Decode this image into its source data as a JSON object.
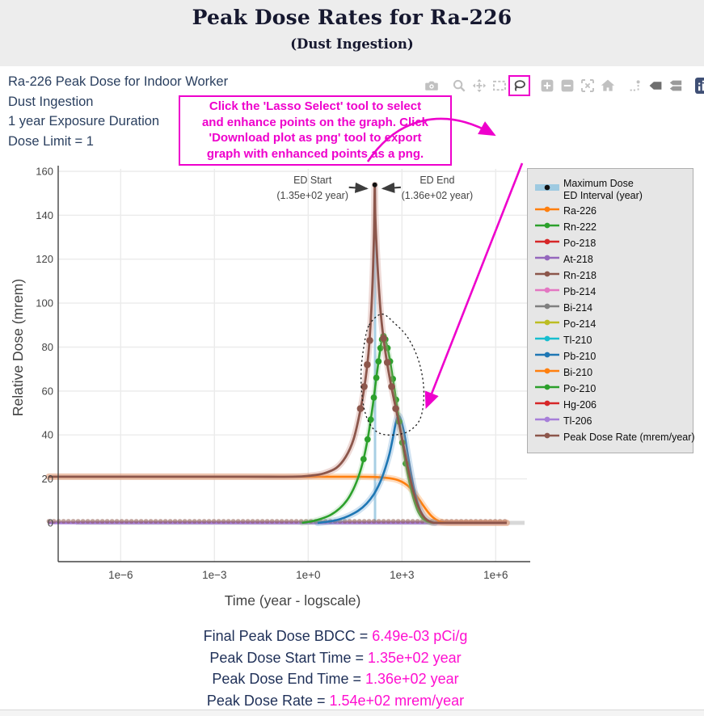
{
  "page": {
    "title": "Peak Dose Rates for Ra-226",
    "subtitle": "(Dust Ingestion)"
  },
  "info": {
    "lines": [
      "Ra-226 Peak Dose for Indoor Worker",
      "Dust Ingestion",
      "1 year Exposure Duration",
      "Dose Limit = 1"
    ]
  },
  "callout": {
    "lines": [
      "Click the 'Lasso Select' tool to select",
      "and enhance points on the graph. Click",
      "'Download plot as png' tool to export",
      "graph with enhanced points as a png."
    ]
  },
  "toolbar": {
    "groups": [
      [
        "camera"
      ],
      [
        "zoom",
        "pan",
        "box-select",
        "lasso"
      ],
      [
        "zoom-in",
        "zoom-out",
        "autoscale",
        "home"
      ],
      [
        "spikelines",
        "hover-closest",
        "hover-compare"
      ],
      [
        "plotly-logo"
      ]
    ],
    "highlighted": "lasso",
    "colors": {
      "default": "#c1c1c1",
      "lasso": "#4d4d4d",
      "hover-closest": "#6f6f6f",
      "hover-compare": "#9a9a9a",
      "logo_bg": "#3f4f75"
    }
  },
  "legend": {
    "items": [
      {
        "label": "Maximum Dose",
        "label2": "ED Interval (year)",
        "color": "#9ecae1",
        "type": "band",
        "dot": "#111111"
      },
      {
        "label": "Ra-226",
        "color": "#ff7f0e",
        "type": "line"
      },
      {
        "label": "Rn-222",
        "color": "#2ca02c",
        "type": "line"
      },
      {
        "label": "Po-218",
        "color": "#d62728",
        "type": "line"
      },
      {
        "label": "At-218",
        "color": "#9467bd",
        "type": "line"
      },
      {
        "label": "Rn-218",
        "color": "#8c564b",
        "type": "line"
      },
      {
        "label": "Pb-214",
        "color": "#e377c2",
        "type": "line"
      },
      {
        "label": "Bi-214",
        "color": "#7f7f7f",
        "type": "line"
      },
      {
        "label": "Po-214",
        "color": "#bcbd22",
        "type": "line"
      },
      {
        "label": "Tl-210",
        "color": "#17becf",
        "type": "line"
      },
      {
        "label": "Pb-210",
        "color": "#1f77b4",
        "type": "line"
      },
      {
        "label": "Bi-210",
        "color": "#ff7f0e",
        "type": "line"
      },
      {
        "label": "Po-210",
        "color": "#2ca02c",
        "type": "line"
      },
      {
        "label": "Hg-206",
        "color": "#d62728",
        "type": "line"
      },
      {
        "label": "Tl-206",
        "color": "#a77fd9",
        "type": "line"
      },
      {
        "label": "Peak Dose Rate (mrem/year)",
        "color": "#8c564b",
        "type": "line"
      }
    ]
  },
  "summary": {
    "lines": [
      {
        "label": "Final Peak Dose BDCC = ",
        "value": "6.49e-03 pCi/g"
      },
      {
        "label": "Peak Dose Start Time = ",
        "value": "1.35e+02 year"
      },
      {
        "label": "Peak Dose End Time = ",
        "value": "1.36e+02 year"
      },
      {
        "label": "Peak Dose Rate = ",
        "value": "1.54e+02 mrem/year"
      }
    ]
  },
  "chart_data": {
    "type": "line",
    "xlabel": "Time (year - logscale)",
    "ylabel": "Relative Dose (mrem)",
    "x_scale": "log10",
    "x_range_log": [
      -8,
      7
    ],
    "x_ticks": [
      {
        "log": -6,
        "label": "1e−6"
      },
      {
        "log": -3,
        "label": "1e−3"
      },
      {
        "log": 0,
        "label": "1e+0"
      },
      {
        "log": 3,
        "label": "1e+3"
      },
      {
        "log": 6,
        "label": "1e+6"
      }
    ],
    "y_range": [
      -17,
      165
    ],
    "y_ticks": [
      0,
      20,
      40,
      60,
      80,
      100,
      120,
      140,
      160
    ],
    "grid": true,
    "legend_position": "right",
    "max_dose_point": {
      "log_time": 2.13,
      "value": 153.8
    },
    "ed_interval": {
      "start_log": 2.1303,
      "end_log": 2.1335,
      "color": "#9ecae1"
    },
    "annotations": [
      {
        "lines": [
          "ED Start",
          "(1.35e+02 year)"
        ],
        "side": "left",
        "target_log": 2.13,
        "target_value": 153.8
      },
      {
        "lines": [
          "ED End",
          "(1.36e+02 year)"
        ],
        "side": "right",
        "target_log": 2.135,
        "target_value": 153.8
      }
    ],
    "lasso_region": [
      [
        1.95,
        90
      ],
      [
        2.35,
        95
      ],
      [
        2.75,
        91
      ],
      [
        3.2,
        84
      ],
      [
        3.55,
        73
      ],
      [
        3.7,
        60
      ],
      [
        3.6,
        48
      ],
      [
        3.25,
        42
      ],
      [
        2.75,
        40
      ],
      [
        2.25,
        41
      ],
      [
        1.93,
        46
      ],
      [
        1.75,
        55
      ],
      [
        1.69,
        68
      ],
      [
        1.79,
        81
      ]
    ],
    "series": [
      {
        "name": "Rn-222",
        "color": "#2ca02c",
        "width": 2,
        "points": [
          [
            -8.3,
            0
          ],
          [
            6.35,
            0
          ]
        ]
      },
      {
        "name": "Po-218",
        "color": "#d62728",
        "width": 2,
        "points": [
          [
            -8.3,
            0
          ],
          [
            6.35,
            0
          ]
        ]
      },
      {
        "name": "At-218",
        "color": "#9467bd",
        "width": 2,
        "points": [
          [
            -8.3,
            0
          ],
          [
            6.35,
            0
          ]
        ]
      },
      {
        "name": "Rn-218",
        "color": "#8c564b",
        "width": 2,
        "points": [
          [
            -8.3,
            0
          ],
          [
            6.35,
            0
          ]
        ]
      },
      {
        "name": "Pb-214",
        "color": "#e377c2",
        "width": 2,
        "points": [
          [
            -8.3,
            0
          ],
          [
            6.35,
            0
          ]
        ]
      },
      {
        "name": "Bi-214",
        "color": "#7f7f7f",
        "width": 2,
        "points": [
          [
            -8.3,
            0
          ],
          [
            6.35,
            0
          ]
        ]
      },
      {
        "name": "Po-214",
        "color": "#bcbd22",
        "width": 2,
        "points": [
          [
            -8.3,
            0
          ],
          [
            6.35,
            0
          ]
        ]
      },
      {
        "name": "Tl-210",
        "color": "#17becf",
        "width": 2,
        "points": [
          [
            -8.3,
            0
          ],
          [
            6.35,
            0
          ]
        ]
      },
      {
        "name": "Bi-210",
        "color": "#ff7f0e",
        "width": 2,
        "points": [
          [
            -8.3,
            0
          ],
          [
            6.35,
            0
          ]
        ]
      },
      {
        "name": "Hg-206",
        "color": "#d62728",
        "width": 2,
        "points": [
          [
            -8.3,
            0
          ],
          [
            6.35,
            0
          ]
        ]
      },
      {
        "name": "Tl-206",
        "color": "#a77fd9",
        "width": 3.4,
        "points": [
          [
            -8.3,
            0
          ],
          [
            6.35,
            0
          ]
        ],
        "speckle": "#8c564b"
      },
      {
        "name": "Ra-226",
        "color": "#ff7f0e",
        "width": 2.6,
        "halo": "rgba(255,150,60,0.32)",
        "halo_w": 8,
        "points": [
          [
            -8.3,
            21
          ],
          [
            -4,
            21
          ],
          [
            -1,
            21
          ],
          [
            0.5,
            21
          ],
          [
            1.5,
            21
          ],
          [
            2.1,
            20.9
          ],
          [
            2.5,
            20.5
          ],
          [
            2.8,
            19.8
          ],
          [
            3.0,
            18.7
          ],
          [
            3.17,
            17.1
          ],
          [
            3.32,
            15.0
          ],
          [
            3.45,
            12.6
          ],
          [
            3.57,
            10.2
          ],
          [
            3.68,
            7.9
          ],
          [
            3.79,
            5.7
          ],
          [
            3.9,
            3.8
          ],
          [
            4.0,
            2.4
          ],
          [
            4.12,
            1.2
          ],
          [
            4.25,
            0.4
          ],
          [
            4.4,
            0.1
          ],
          [
            4.6,
            0
          ],
          [
            5.5,
            0
          ],
          [
            6.35,
            0
          ]
        ]
      },
      {
        "name": "Pb-210",
        "color": "#1f77b4",
        "width": 2.6,
        "halo": "rgba(100,160,210,0.30)",
        "halo_w": 8,
        "points": [
          [
            0.3,
            0
          ],
          [
            0.65,
            0.6
          ],
          [
            1.0,
            1.6
          ],
          [
            1.3,
            3.2
          ],
          [
            1.6,
            5.5
          ],
          [
            1.87,
            8.8
          ],
          [
            2.1,
            13
          ],
          [
            2.3,
            18.5
          ],
          [
            2.47,
            25
          ],
          [
            2.6,
            31.5
          ],
          [
            2.7,
            38
          ],
          [
            2.78,
            44
          ],
          [
            2.84,
            47.5
          ],
          [
            2.89,
            48.8
          ],
          [
            2.95,
            47.5
          ],
          [
            3.02,
            44
          ],
          [
            3.1,
            38.5
          ],
          [
            3.18,
            31.5
          ],
          [
            3.27,
            24
          ],
          [
            3.37,
            16.5
          ],
          [
            3.48,
            10
          ],
          [
            3.6,
            5.2
          ],
          [
            3.73,
            2.2
          ],
          [
            3.87,
            0.7
          ],
          [
            4.05,
            0
          ]
        ]
      },
      {
        "name": "Po-210",
        "color": "#2ca02c",
        "width": 2.6,
        "halo": "rgba(120,190,120,0.22)",
        "halo_w": 7,
        "dots": {
          "min": 27,
          "r": 3.9
        },
        "points": [
          [
            -0.2,
            0
          ],
          [
            0.1,
            0.7
          ],
          [
            0.4,
            1.8
          ],
          [
            0.7,
            3.5
          ],
          [
            1.0,
            6.5
          ],
          [
            1.25,
            10.5
          ],
          [
            1.45,
            15.5
          ],
          [
            1.62,
            21.5
          ],
          [
            1.77,
            29
          ],
          [
            1.9,
            38
          ],
          [
            2.0,
            47
          ],
          [
            2.1,
            57
          ],
          [
            2.18,
            66
          ],
          [
            2.25,
            73.5
          ],
          [
            2.31,
            79.5
          ],
          [
            2.36,
            83.5
          ],
          [
            2.41,
            85
          ],
          [
            2.47,
            83.5
          ],
          [
            2.54,
            79.5
          ],
          [
            2.62,
            73.5
          ],
          [
            2.71,
            65.5
          ],
          [
            2.81,
            56
          ],
          [
            2.91,
            46
          ],
          [
            3.01,
            36.5
          ],
          [
            3.12,
            27
          ],
          [
            3.24,
            18.5
          ],
          [
            3.36,
            11.5
          ],
          [
            3.49,
            6
          ],
          [
            3.62,
            2.7
          ],
          [
            3.77,
            1
          ],
          [
            3.95,
            0
          ]
        ]
      },
      {
        "name": "Peak Dose Rate (mrem/year)",
        "color": "#8c564b",
        "width": 2.8,
        "halo": "rgba(205,150,140,0.35)",
        "halo_w": 8,
        "dot_points": [
          [
            1.67,
            52
          ],
          [
            1.79,
            62
          ],
          [
            1.89,
            72
          ],
          [
            1.97,
            83
          ],
          [
            2.41,
            84
          ],
          [
            2.53,
            73
          ],
          [
            2.67,
            62
          ],
          [
            2.8,
            52
          ]
        ],
        "dot_r": 4.3,
        "points": [
          [
            -8.3,
            21
          ],
          [
            -5,
            21
          ],
          [
            -2,
            21
          ],
          [
            -0.5,
            21
          ],
          [
            0.1,
            21.5
          ],
          [
            0.5,
            22.5
          ],
          [
            0.9,
            25
          ],
          [
            1.2,
            30
          ],
          [
            1.45,
            38
          ],
          [
            1.65,
            50
          ],
          [
            1.8,
            62
          ],
          [
            1.92,
            76
          ],
          [
            2.0,
            92
          ],
          [
            2.06,
            110
          ],
          [
            2.1,
            128
          ],
          [
            2.115,
            140
          ],
          [
            2.13,
            153.8
          ],
          [
            2.145,
            140
          ],
          [
            2.18,
            128
          ],
          [
            2.24,
            112
          ],
          [
            2.31,
            97
          ],
          [
            2.4,
            85
          ],
          [
            2.52,
            73
          ],
          [
            2.66,
            62
          ],
          [
            2.82,
            51
          ],
          [
            2.98,
            40
          ],
          [
            3.12,
            30
          ],
          [
            3.25,
            21
          ],
          [
            3.38,
            13.5
          ],
          [
            3.52,
            7.5
          ],
          [
            3.66,
            3.5
          ],
          [
            3.8,
            1.3
          ],
          [
            3.95,
            0.3
          ],
          [
            4.1,
            0
          ],
          [
            5,
            0
          ],
          [
            6.35,
            0
          ]
        ]
      }
    ]
  },
  "colors": {
    "magenta": "#ee00cc",
    "axis": "#444444",
    "grid": "#ebebeb",
    "zeroline": "#d8d8d8",
    "info_text": "#2a3f5f"
  }
}
